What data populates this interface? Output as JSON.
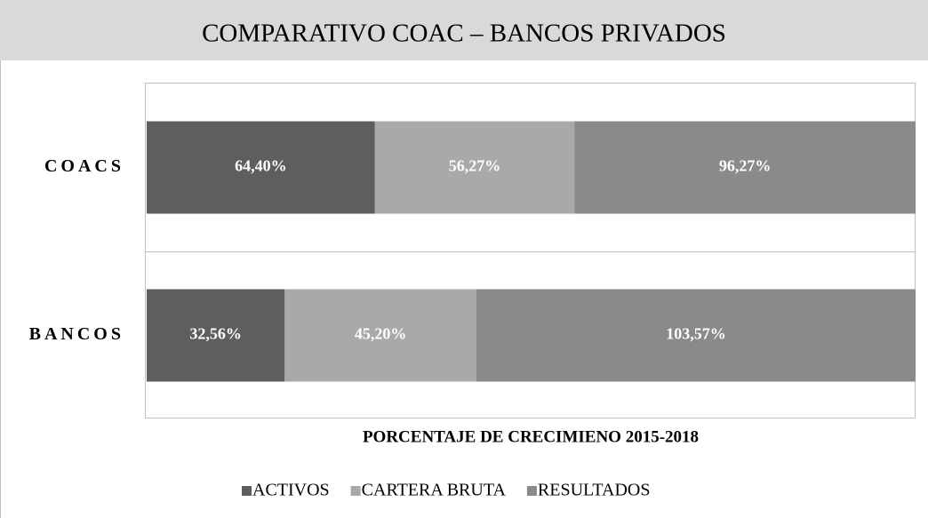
{
  "chart_data": {
    "type": "stacked_bar_100_horizontal",
    "title": "COMPARATIVO COAC – BANCOS PRIVADOS",
    "x_label": "PORCENTAJE DE CRECIMIENO 2015-2018",
    "categories": [
      "COACS",
      "BANCOS"
    ],
    "series": [
      {
        "name": "ACTIVOS",
        "color": "#5e5e5e",
        "values": [
          64.4,
          32.56
        ],
        "value_labels": [
          "64,40%",
          "32,56%"
        ]
      },
      {
        "name": "CARTERA BRUTA",
        "color": "#a9a9a9",
        "values": [
          56.27,
          45.2
        ],
        "value_labels": [
          "56,27%",
          "45,20%"
        ]
      },
      {
        "name": "RESULTADOS",
        "color": "#8a8a8a",
        "values": [
          96.27,
          103.57
        ],
        "value_labels": [
          "96,27%",
          "103,57%"
        ]
      }
    ],
    "legend": "bottom"
  }
}
